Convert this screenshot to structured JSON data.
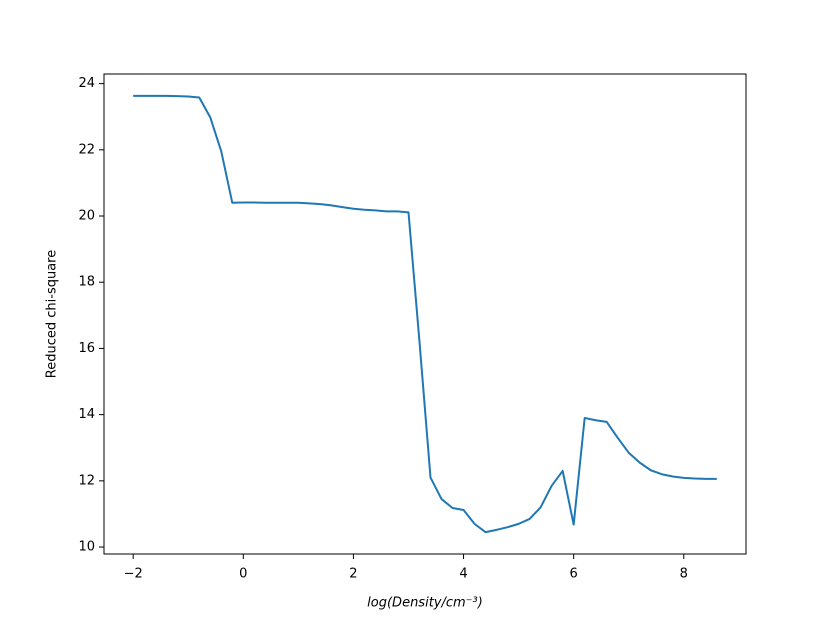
{
  "chart_data": {
    "type": "line",
    "xlabel": "log(Density/cm⁻³)",
    "ylabel": "Reduced chi-square",
    "x": [
      -2.0,
      -1.8,
      -1.6,
      -1.4,
      -1.2,
      -1.0,
      -0.8,
      -0.6,
      -0.4,
      -0.2,
      0.0,
      0.2,
      0.4,
      0.6,
      0.8,
      1.0,
      1.2,
      1.4,
      1.6,
      1.8,
      2.0,
      2.2,
      2.4,
      2.6,
      2.8,
      3.0,
      3.2,
      3.4,
      3.6,
      3.8,
      4.0,
      4.2,
      4.4,
      4.6,
      4.8,
      5.0,
      5.2,
      5.4,
      5.6,
      5.8,
      6.0,
      6.2,
      6.4,
      6.6,
      6.8,
      7.0,
      7.2,
      7.4,
      7.6,
      7.8,
      8.0,
      8.2,
      8.4,
      8.6
    ],
    "series": [
      {
        "name": "Reduced chi-square",
        "color": "#1f77b4",
        "values": [
          23.63,
          23.63,
          23.63,
          23.63,
          23.62,
          23.61,
          23.58,
          22.98,
          21.95,
          20.4,
          20.41,
          20.41,
          20.4,
          20.4,
          20.4,
          20.4,
          20.38,
          20.36,
          20.32,
          20.27,
          20.22,
          20.19,
          20.17,
          20.14,
          20.14,
          20.11,
          16.2,
          12.1,
          11.45,
          11.18,
          11.12,
          10.7,
          10.45,
          10.52,
          10.6,
          10.7,
          10.85,
          11.2,
          11.85,
          12.3,
          10.68,
          13.9,
          13.83,
          13.78,
          13.3,
          12.85,
          12.55,
          12.32,
          12.2,
          12.13,
          12.09,
          12.07,
          12.06,
          12.06
        ]
      }
    ],
    "xlim": [
      -2.53,
      9.13
    ],
    "ylim": [
      9.79,
      24.29
    ],
    "xticks": [
      {
        "value": -2,
        "label": "−2"
      },
      0,
      2,
      4,
      6,
      8
    ],
    "yticks": [
      10,
      12,
      14,
      16,
      18,
      20,
      22,
      24
    ]
  }
}
